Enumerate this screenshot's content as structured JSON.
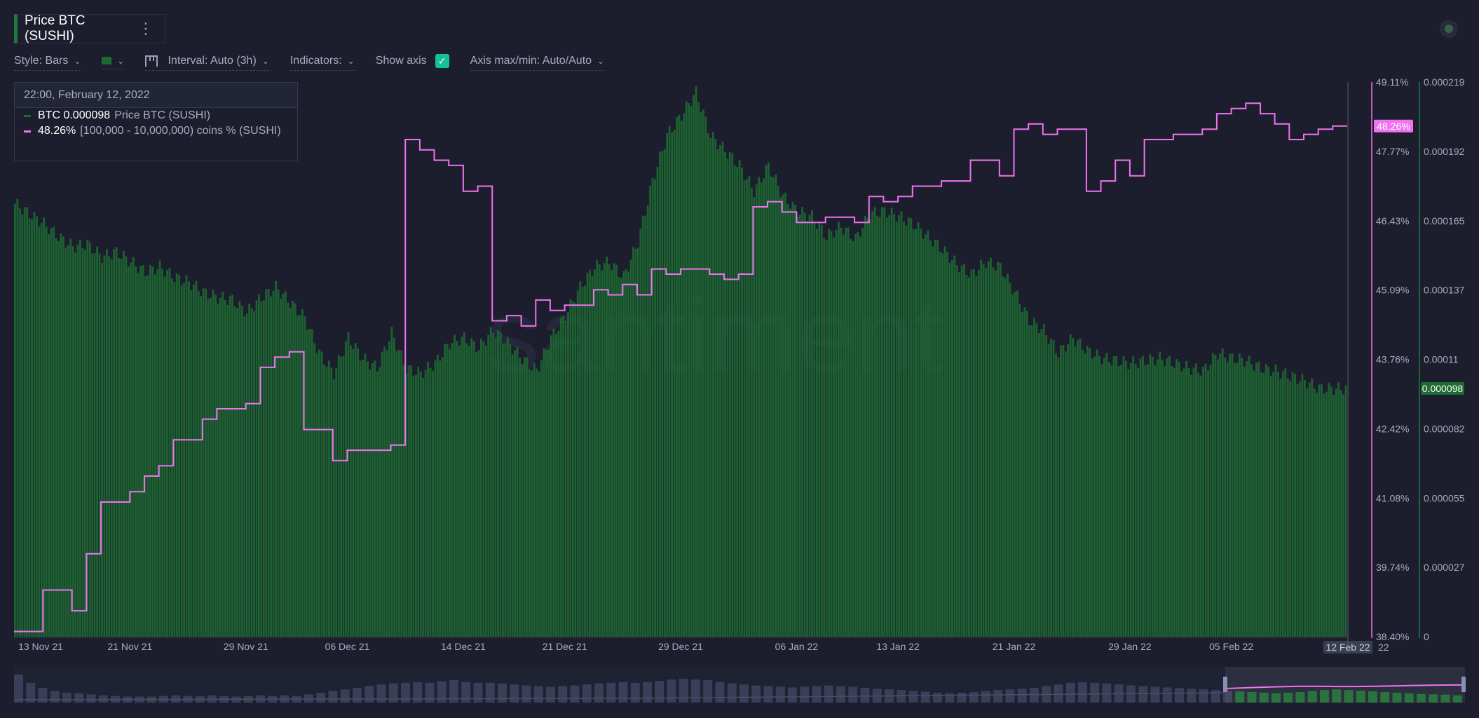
{
  "header": {
    "title": "Price BTC (SUSHI)",
    "menu_icon": "kebab-icon"
  },
  "toolbar": {
    "style_label": "Style: Bars",
    "color_value": "#1e6b32",
    "interval_label": "Interval: Auto (3h)",
    "indicators_label": "Indicators:",
    "show_axis_label": "Show axis",
    "show_axis_checked": true,
    "axis_label": "Axis max/min: Auto/Auto"
  },
  "tooltip": {
    "date": "22:00, February 12, 2022",
    "rows": [
      {
        "value": "BTC 0.000098",
        "label": "Price BTC (SUSHI)",
        "color": "#1e6b32"
      },
      {
        "value": "48.26%",
        "label": "[100,000  - 10,000,000) coins % (SUSHI)",
        "color": "#ef72ef"
      }
    ]
  },
  "colors": {
    "background": "#1c1e2d",
    "price_bars": "#1e6b32",
    "holders_line": "#ef72ef"
  },
  "chart_data": {
    "type": "bar",
    "x_start": "2021-11-13",
    "x_end": "2022-02-12",
    "x_ticks": [
      "13 Nov 21",
      "21 Nov 21",
      "29 Nov 21",
      "06 Dec 21",
      "14 Dec 21",
      "21 Dec 21",
      "29 Dec 21",
      "06 Jan 22",
      "13 Jan 22",
      "21 Jan 22",
      "29 Jan 22",
      "05 Feb 22"
    ],
    "x_end_tick": "22",
    "x_highlight": "12 Feb 22",
    "watermark": "santiment",
    "grid": false,
    "series": [
      {
        "name": "Price BTC (SUSHI)",
        "type": "bar",
        "color": "#1e6b32",
        "axis": "right",
        "ylim": [
          0,
          0.000219
        ],
        "ticks": [
          "0.000219",
          "0.000192",
          "0.000165",
          "0.000137",
          "0.00011",
          "0.000082",
          "0.000055",
          "0.000027",
          "0"
        ],
        "last_value_label": "0.000098",
        "points": [
          [
            "2021-11-13",
            0.000171
          ],
          [
            "2021-11-14",
            0.000167
          ],
          [
            "2021-11-15",
            0.000163
          ],
          [
            "2021-11-16",
            0.000158
          ],
          [
            "2021-11-17",
            0.000154
          ],
          [
            "2021-11-18",
            0.000155
          ],
          [
            "2021-11-19",
            0.00015
          ],
          [
            "2021-11-20",
            0.000152
          ],
          [
            "2021-11-21",
            0.000148
          ],
          [
            "2021-11-22",
            0.000144
          ],
          [
            "2021-11-23",
            0.000146
          ],
          [
            "2021-11-24",
            0.000142
          ],
          [
            "2021-11-25",
            0.00014
          ],
          [
            "2021-11-26",
            0.000136
          ],
          [
            "2021-11-27",
            0.000134
          ],
          [
            "2021-11-28",
            0.000133
          ],
          [
            "2021-11-29",
            0.000128
          ],
          [
            "2021-11-30",
            0.000134
          ],
          [
            "2021-12-01",
            0.000138
          ],
          [
            "2021-12-02",
            0.000132
          ],
          [
            "2021-12-03",
            0.000126
          ],
          [
            "2021-12-04",
            0.000112
          ],
          [
            "2021-12-05",
            0.000104
          ],
          [
            "2021-12-06",
            0.000118
          ],
          [
            "2021-12-07",
            0.00011
          ],
          [
            "2021-12-08",
            0.000106
          ],
          [
            "2021-12-09",
            0.00012
          ],
          [
            "2021-12-10",
            0.000106
          ],
          [
            "2021-12-11",
            0.000104
          ],
          [
            "2021-12-12",
            0.000108
          ],
          [
            "2021-12-13",
            0.000116
          ],
          [
            "2021-12-14",
            0.000118
          ],
          [
            "2021-12-15",
            0.000114
          ],
          [
            "2021-12-16",
            0.000121
          ],
          [
            "2021-12-17",
            0.000116
          ],
          [
            "2021-12-18",
            0.00011
          ],
          [
            "2021-12-19",
            0.000105
          ],
          [
            "2021-12-20",
            0.000118
          ],
          [
            "2021-12-21",
            0.000127
          ],
          [
            "2021-12-22",
            0.000138
          ],
          [
            "2021-12-23",
            0.000146
          ],
          [
            "2021-12-24",
            0.000148
          ],
          [
            "2021-12-25",
            0.000142
          ],
          [
            "2021-12-26",
            0.000156
          ],
          [
            "2021-12-27",
            0.00018
          ],
          [
            "2021-12-28",
            0.000198
          ],
          [
            "2021-12-29",
            0.000206
          ],
          [
            "2021-12-30",
            0.000215
          ],
          [
            "2021-12-31",
            0.000198
          ],
          [
            "2022-01-01",
            0.000192
          ],
          [
            "2022-01-02",
            0.000186
          ],
          [
            "2022-01-03",
            0.000176
          ],
          [
            "2022-01-04",
            0.000186
          ],
          [
            "2022-01-05",
            0.000174
          ],
          [
            "2022-01-06",
            0.000168
          ],
          [
            "2022-01-07",
            0.000166
          ],
          [
            "2022-01-08",
            0.000158
          ],
          [
            "2022-01-09",
            0.000162
          ],
          [
            "2022-01-10",
            0.000157
          ],
          [
            "2022-01-11",
            0.000167
          ],
          [
            "2022-01-12",
            0.000168
          ],
          [
            "2022-01-13",
            0.000166
          ],
          [
            "2022-01-14",
            0.000163
          ],
          [
            "2022-01-15",
            0.000158
          ],
          [
            "2022-01-16",
            0.000153
          ],
          [
            "2022-01-17",
            0.000147
          ],
          [
            "2022-01-18",
            0.000143
          ],
          [
            "2022-01-19",
            0.000148
          ],
          [
            "2022-01-20",
            0.000146
          ],
          [
            "2022-01-21",
            0.000136
          ],
          [
            "2022-01-22",
            0.000125
          ],
          [
            "2022-01-23",
            0.000121
          ],
          [
            "2022-01-24",
            0.000112
          ],
          [
            "2022-01-25",
            0.000118
          ],
          [
            "2022-01-26",
            0.000113
          ],
          [
            "2022-01-27",
            0.00011
          ],
          [
            "2022-01-28",
            0.000109
          ],
          [
            "2022-01-29",
            0.000108
          ],
          [
            "2022-01-30",
            0.000109
          ],
          [
            "2022-01-31",
            0.00011
          ],
          [
            "2022-02-01",
            0.000108
          ],
          [
            "2022-02-02",
            0.000106
          ],
          [
            "2022-02-03",
            0.000105
          ],
          [
            "2022-02-04",
            0.000112
          ],
          [
            "2022-02-05",
            0.00011
          ],
          [
            "2022-02-06",
            0.000109
          ],
          [
            "2022-02-07",
            0.000106
          ],
          [
            "2022-02-08",
            0.000105
          ],
          [
            "2022-02-09",
            0.000103
          ],
          [
            "2022-02-10",
            0.000101
          ],
          [
            "2022-02-11",
            9.8e-05
          ],
          [
            "2022-02-12",
            9.8e-05
          ]
        ]
      },
      {
        "name": "[100,000  - 10,000,000) coins % (SUSHI)",
        "type": "step-line",
        "color": "#ef72ef",
        "axis": "right-inner",
        "ylim": [
          38.4,
          49.11
        ],
        "ticks": [
          "49.11%",
          "47.77%",
          "46.43%",
          "45.09%",
          "43.76%",
          "42.42%",
          "41.08%",
          "39.74%",
          "38.40%"
        ],
        "last_value_label": "48.26%",
        "points": [
          [
            "2021-11-13",
            38.5
          ],
          [
            "2021-11-15",
            39.3
          ],
          [
            "2021-11-17",
            38.9
          ],
          [
            "2021-11-18",
            40.0
          ],
          [
            "2021-11-19",
            41.0
          ],
          [
            "2021-11-21",
            41.2
          ],
          [
            "2021-11-22",
            41.5
          ],
          [
            "2021-11-23",
            41.7
          ],
          [
            "2021-11-24",
            42.2
          ],
          [
            "2021-11-26",
            42.6
          ],
          [
            "2021-11-27",
            42.8
          ],
          [
            "2021-11-29",
            42.9
          ],
          [
            "2021-11-30",
            43.6
          ],
          [
            "2021-12-01",
            43.8
          ],
          [
            "2021-12-02",
            43.9
          ],
          [
            "2021-12-03",
            42.4
          ],
          [
            "2021-12-05",
            41.8
          ],
          [
            "2021-12-06",
            42.0
          ],
          [
            "2021-12-09",
            42.1
          ],
          [
            "2021-12-10",
            48.0
          ],
          [
            "2021-12-11",
            47.8
          ],
          [
            "2021-12-12",
            47.6
          ],
          [
            "2021-12-13",
            47.5
          ],
          [
            "2021-12-14",
            47.0
          ],
          [
            "2021-12-15",
            47.1
          ],
          [
            "2021-12-16",
            44.5
          ],
          [
            "2021-12-17",
            44.6
          ],
          [
            "2021-12-18",
            44.4
          ],
          [
            "2021-12-19",
            44.9
          ],
          [
            "2021-12-20",
            44.7
          ],
          [
            "2021-12-21",
            44.8
          ],
          [
            "2021-12-23",
            45.1
          ],
          [
            "2021-12-24",
            45.0
          ],
          [
            "2021-12-25",
            45.2
          ],
          [
            "2021-12-26",
            45.0
          ],
          [
            "2021-12-27",
            45.5
          ],
          [
            "2021-12-28",
            45.4
          ],
          [
            "2021-12-29",
            45.5
          ],
          [
            "2021-12-31",
            45.4
          ],
          [
            "2022-01-01",
            45.3
          ],
          [
            "2022-01-02",
            45.4
          ],
          [
            "2022-01-03",
            46.7
          ],
          [
            "2022-01-04",
            46.8
          ],
          [
            "2022-01-05",
            46.6
          ],
          [
            "2022-01-06",
            46.4
          ],
          [
            "2022-01-08",
            46.5
          ],
          [
            "2022-01-10",
            46.4
          ],
          [
            "2022-01-11",
            46.9
          ],
          [
            "2022-01-12",
            46.8
          ],
          [
            "2022-01-13",
            46.9
          ],
          [
            "2022-01-14",
            47.1
          ],
          [
            "2022-01-16",
            47.2
          ],
          [
            "2022-01-18",
            47.6
          ],
          [
            "2022-01-20",
            47.3
          ],
          [
            "2022-01-21",
            48.2
          ],
          [
            "2022-01-22",
            48.3
          ],
          [
            "2022-01-23",
            48.1
          ],
          [
            "2022-01-24",
            48.2
          ],
          [
            "2022-01-26",
            47.0
          ],
          [
            "2022-01-27",
            47.2
          ],
          [
            "2022-01-28",
            47.6
          ],
          [
            "2022-01-29",
            47.3
          ],
          [
            "2022-01-30",
            48.0
          ],
          [
            "2022-02-01",
            48.1
          ],
          [
            "2022-02-03",
            48.2
          ],
          [
            "2022-02-04",
            48.5
          ],
          [
            "2022-02-05",
            48.6
          ],
          [
            "2022-02-06",
            48.7
          ],
          [
            "2022-02-07",
            48.5
          ],
          [
            "2022-02-08",
            48.3
          ],
          [
            "2022-02-09",
            48.0
          ],
          [
            "2022-02-10",
            48.1
          ],
          [
            "2022-02-11",
            48.2
          ],
          [
            "2022-02-12",
            48.26
          ]
        ]
      }
    ],
    "navigator": {
      "bars": [
        0.85,
        0.6,
        0.45,
        0.35,
        0.3,
        0.28,
        0.25,
        0.22,
        0.2,
        0.18,
        0.18,
        0.18,
        0.2,
        0.22,
        0.2,
        0.2,
        0.22,
        0.2,
        0.18,
        0.2,
        0.22,
        0.2,
        0.22,
        0.2,
        0.25,
        0.3,
        0.35,
        0.4,
        0.45,
        0.5,
        0.55,
        0.58,
        0.6,
        0.62,
        0.6,
        0.65,
        0.68,
        0.62,
        0.6,
        0.6,
        0.58,
        0.55,
        0.52,
        0.5,
        0.48,
        0.5,
        0.52,
        0.55,
        0.58,
        0.6,
        0.62,
        0.6,
        0.62,
        0.66,
        0.7,
        0.72,
        0.7,
        0.68,
        0.62,
        0.58,
        0.55,
        0.52,
        0.5,
        0.48,
        0.46,
        0.48,
        0.5,
        0.52,
        0.5,
        0.48,
        0.45,
        0.42,
        0.4,
        0.38,
        0.35,
        0.33,
        0.3,
        0.28,
        0.3,
        0.32,
        0.35,
        0.38,
        0.4,
        0.42,
        0.45,
        0.5,
        0.55,
        0.6,
        0.62,
        0.6,
        0.58,
        0.55,
        0.52,
        0.5,
        0.48,
        0.46,
        0.44,
        0.42,
        0.4,
        0.38,
        0.36,
        0.34,
        0.32,
        0.3,
        0.28,
        0.3,
        0.32,
        0.35,
        0.38,
        0.4,
        0.38,
        0.36,
        0.34,
        0.32,
        0.3,
        0.28,
        0.26,
        0.25,
        0.24,
        0.22
      ],
      "selection_start": "2021-11-13",
      "selection_end": "2022-02-12"
    }
  }
}
